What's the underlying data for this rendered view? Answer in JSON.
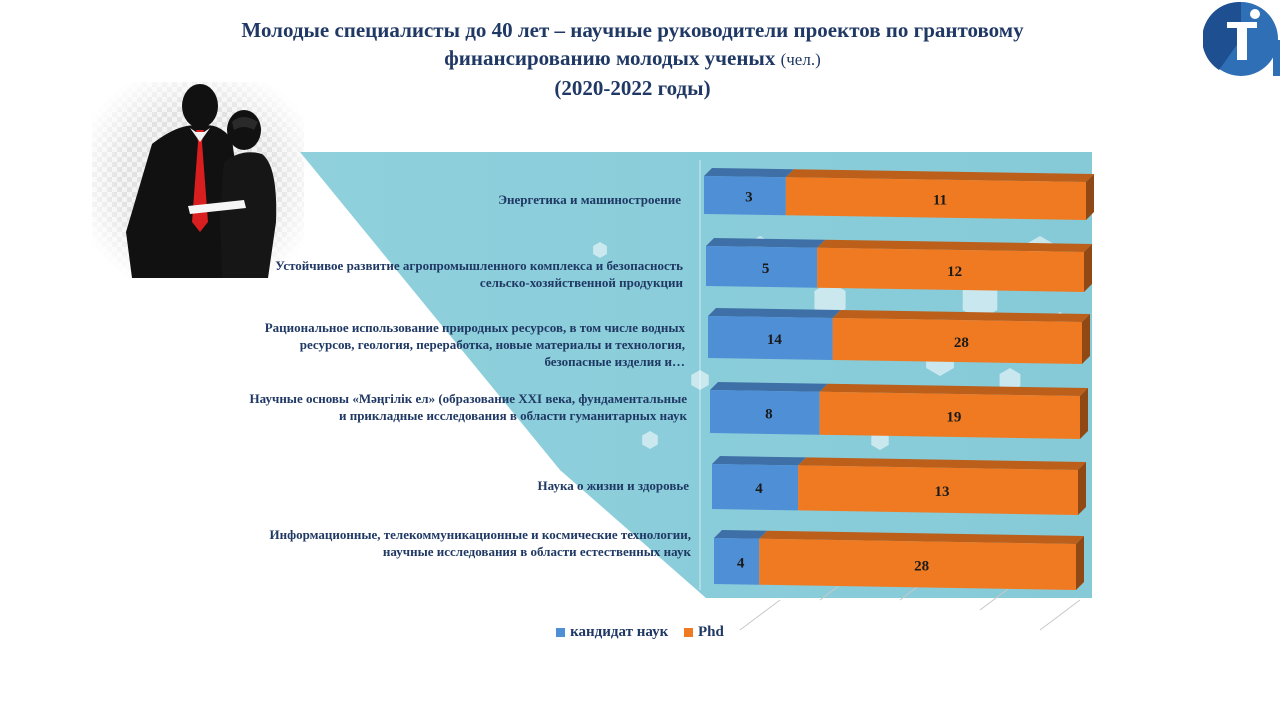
{
  "title": {
    "line1": "Молодые специалисты до 40 лет – научные руководители проектов по грантовому",
    "line2": "финансированию молодых ученых",
    "unit": "(чел.)",
    "line3": "(2020-2022 годы)"
  },
  "colors": {
    "blue": "#4f8fd6",
    "orange": "#f07a22",
    "title": "#1f3864",
    "background_panel": "#8fd0dc"
  },
  "chart_data": {
    "type": "bar",
    "orientation": "horizontal",
    "stacked": true,
    "categories": [
      "Энергетика и машиностроение",
      "Устойчивое развитие агропромышленного  комплекса и безопасность сельско-хозяйственной продукции",
      "Рациональное использование природных ресурсов, в том числе водных ресурсов, геология, переработка, новые материалы и технология, безопасные изделия и…",
      "Научные основы «Мәңгілік ел» (образование XXI века, фундаментальные и прикладные исследования в области гуманитарных наук",
      "Наука о жизни и здоровье",
      "Информационные, телекоммуникационные и космические технологии, научные исследования в области естественных наук"
    ],
    "series": [
      {
        "name": "кандидат наук",
        "color": "#4f8fd6",
        "values": [
          3,
          5,
          14,
          8,
          4,
          4
        ]
      },
      {
        "name": "Phd",
        "color": "#f07a22",
        "values": [
          11,
          12,
          28,
          19,
          13,
          28
        ]
      }
    ],
    "legend_position": "bottom",
    "title": ""
  },
  "legend": {
    "item1": "кандидат наук",
    "item2": "Phd"
  }
}
